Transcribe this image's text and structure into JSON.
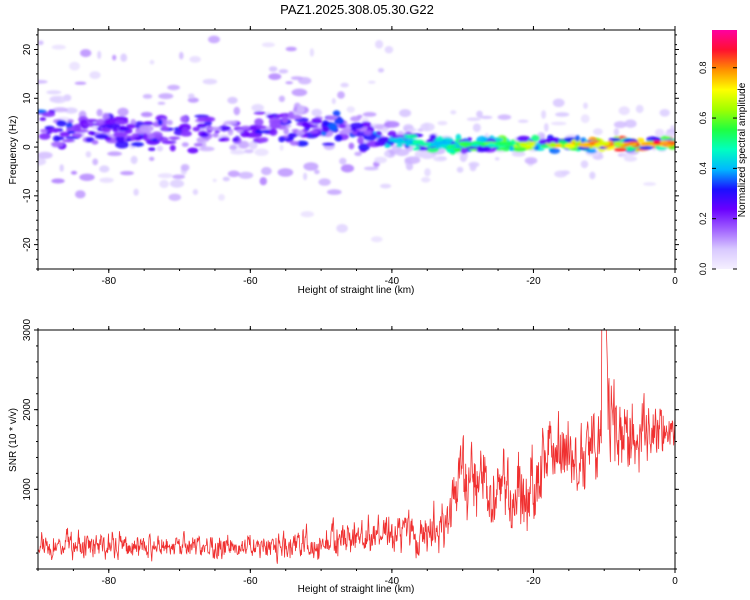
{
  "title": "PAZ1.2025.308.05.30.G22",
  "colors": {
    "snr_line": "#f03030",
    "axis": "#000000",
    "colormap": [
      "#f5f0ff",
      "#d8c8ff",
      "#a060ff",
      "#6a00ff",
      "#1a10ff",
      "#00b8ff",
      "#00ffc0",
      "#20ff40",
      "#a0ff00",
      "#ffff00",
      "#ff9000",
      "#ff1030",
      "#ff00a0"
    ]
  },
  "chart_data": [
    {
      "type": "heatmap",
      "name": "spectrogram",
      "xlabel": "Height of straight line (km)",
      "ylabel": "Frequency (Hz)",
      "xlim": [
        -90,
        0
      ],
      "ylim": [
        -25,
        24
      ],
      "xticks": [
        -80,
        -60,
        -40,
        -20,
        0
      ],
      "yticks": [
        -20,
        -10,
        0,
        10,
        20
      ],
      "xtick_labels": [
        "-80",
        "-60",
        "-40",
        "-20",
        "0"
      ],
      "ytick_labels": [
        "-20",
        "-10",
        "0",
        "10",
        "20"
      ],
      "ridge": {
        "x": [
          -90,
          -80,
          -70,
          -60,
          -55,
          -50,
          -45,
          -40,
          -35,
          -30,
          -25,
          -20,
          -15,
          -10,
          -5,
          0
        ],
        "center_freq_hz": [
          4,
          3.5,
          3,
          3,
          3.5,
          4,
          3,
          1.5,
          0.8,
          0.5,
          0.6,
          0.5,
          0.5,
          0.6,
          0.7,
          0.8
        ],
        "amplitude": [
          0.35,
          0.3,
          0.3,
          0.3,
          0.3,
          0.35,
          0.35,
          0.45,
          0.5,
          0.55,
          0.6,
          0.7,
          0.75,
          0.8,
          0.85,
          0.9
        ]
      },
      "colorbar": {
        "label": "Normalized spectral amplitude",
        "range": [
          0,
          0.95
        ],
        "ticks": [
          0.0,
          0.2,
          0.4,
          0.6,
          0.8
        ],
        "tick_labels": [
          "0.0",
          "0.2",
          "0.4",
          "0.6",
          "0.8"
        ]
      }
    },
    {
      "type": "line",
      "name": "snr",
      "xlabel": "Height of straight line (km)",
      "ylabel": "SNR (10 * v/v)",
      "xlim": [
        -90,
        0
      ],
      "ylim": [
        0,
        3000
      ],
      "xticks": [
        -80,
        -60,
        -40,
        -20,
        0
      ],
      "yticks": [
        1000,
        2000,
        3000
      ],
      "xtick_labels": [
        "-80",
        "-60",
        "-40",
        "-20",
        "0"
      ],
      "ytick_labels": [
        "1000",
        "2000",
        "3000"
      ],
      "envelope": {
        "x": [
          -90,
          -80,
          -70,
          -60,
          -55,
          -50,
          -45,
          -40,
          -35,
          -32,
          -30,
          -28,
          -25,
          -22,
          -20,
          -18,
          -15,
          -13,
          -11,
          -10,
          -8,
          -6,
          -4,
          -2,
          0
        ],
        "mean": [
          300,
          310,
          280,
          280,
          300,
          340,
          380,
          420,
          500,
          620,
          1100,
          1000,
          1000,
          980,
          1050,
          1400,
          1450,
          1500,
          1600,
          2000,
          1700,
          1700,
          1750,
          1800,
          1750
        ],
        "spread": [
          200,
          200,
          180,
          180,
          220,
          260,
          300,
          300,
          350,
          400,
          650,
          600,
          600,
          650,
          700,
          750,
          600,
          600,
          650,
          900,
          600,
          600,
          500,
          400,
          300
        ]
      },
      "peak": {
        "x": -10,
        "y": 3000
      }
    }
  ]
}
